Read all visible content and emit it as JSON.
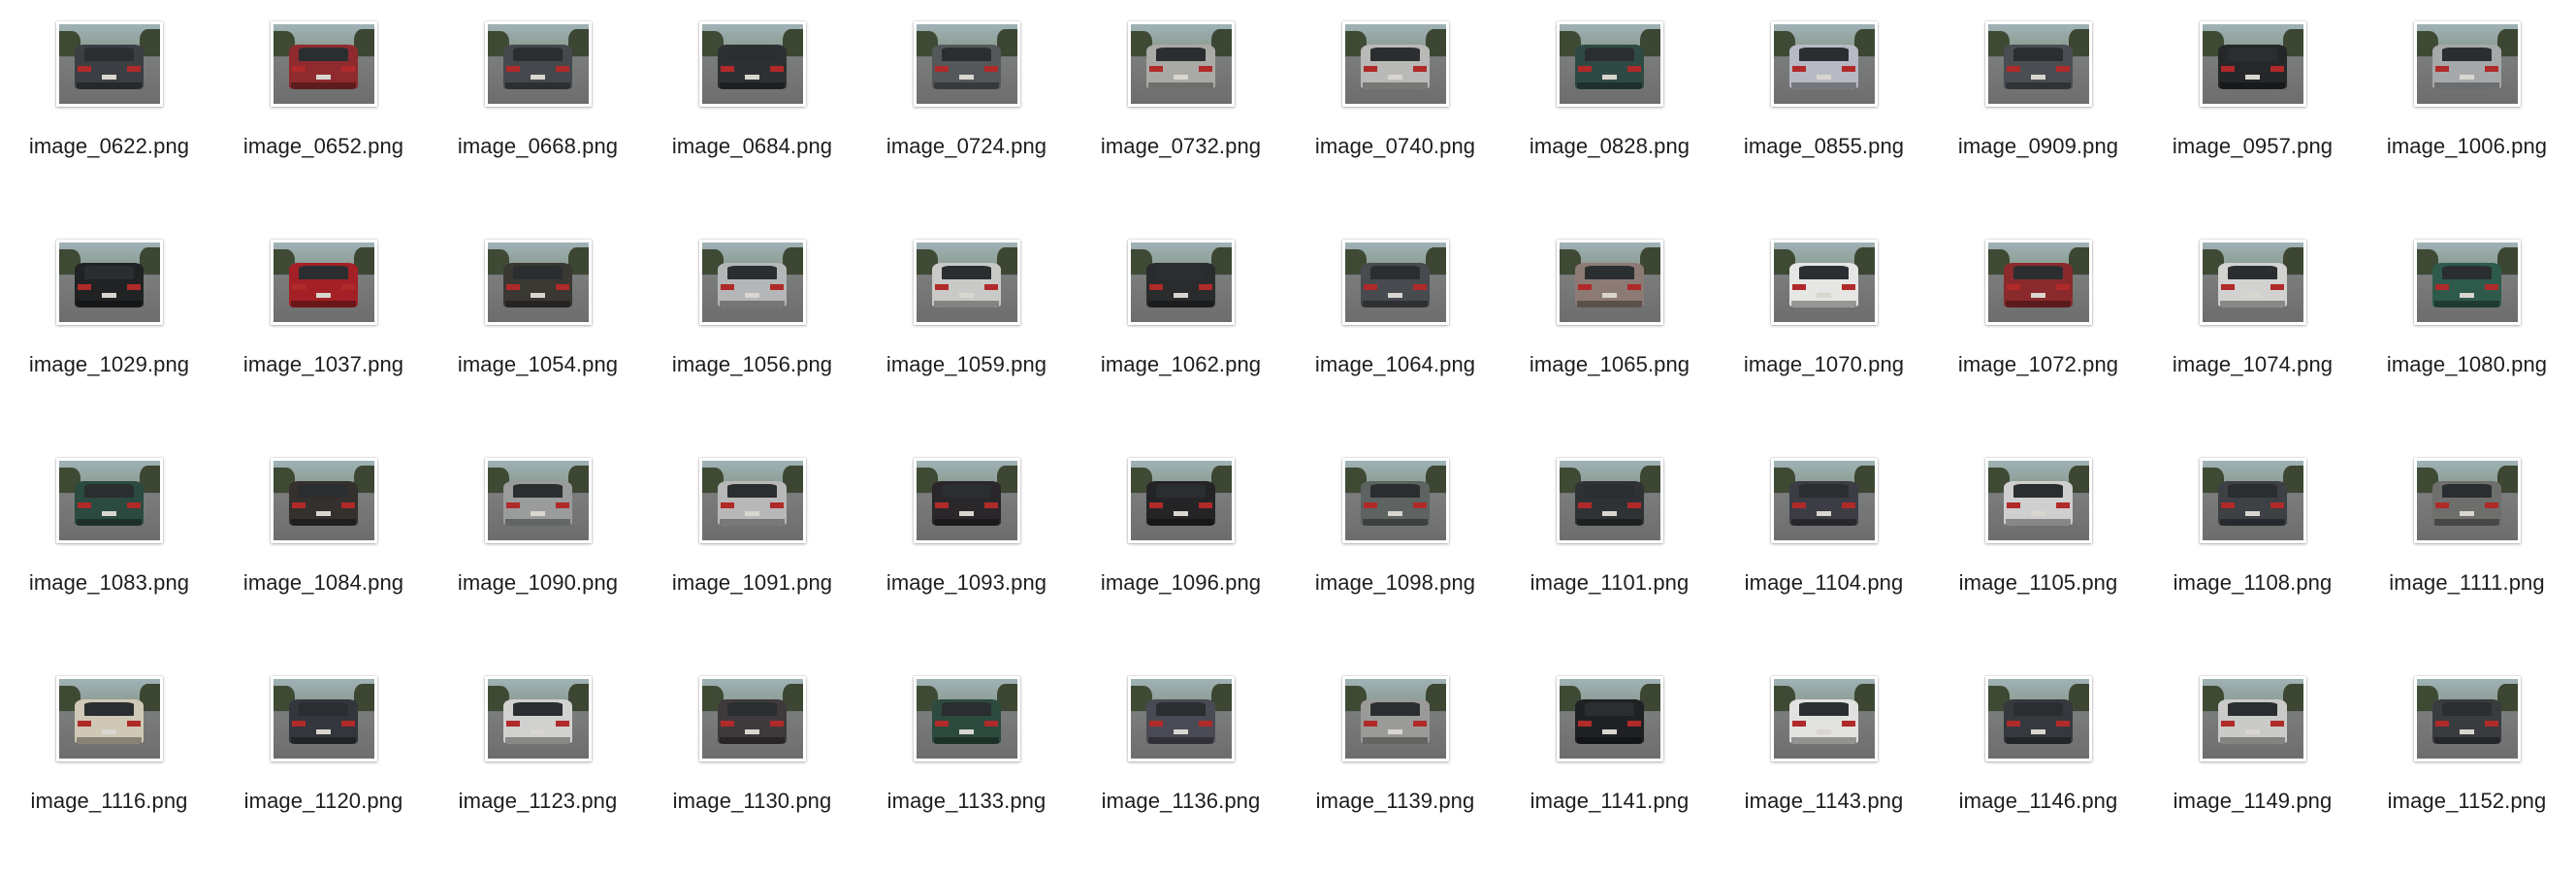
{
  "files": [
    {
      "name": "image_0622.png",
      "car_color": "#3b3f44"
    },
    {
      "name": "image_0652.png",
      "car_color": "#8f2b2f"
    },
    {
      "name": "image_0668.png",
      "car_color": "#45484c"
    },
    {
      "name": "image_0684.png",
      "car_color": "#2e3033"
    },
    {
      "name": "image_0724.png",
      "car_color": "#55585b"
    },
    {
      "name": "image_0732.png",
      "car_color": "#a9a9a6"
    },
    {
      "name": "image_0740.png",
      "car_color": "#b9b9b7"
    },
    {
      "name": "image_0828.png",
      "car_color": "#2f4a44"
    },
    {
      "name": "image_0855.png",
      "car_color": "#b7b9c4"
    },
    {
      "name": "image_0909.png",
      "car_color": "#4a4d52"
    },
    {
      "name": "image_0957.png",
      "car_color": "#252729"
    },
    {
      "name": "image_1006.png",
      "car_color": "#a6a8aa"
    },
    {
      "name": "image_1029.png",
      "car_color": "#202224"
    },
    {
      "name": "image_1037.png",
      "car_color": "#a32126"
    },
    {
      "name": "image_1054.png",
      "car_color": "#3a3832"
    },
    {
      "name": "image_1056.png",
      "car_color": "#b5b6b7"
    },
    {
      "name": "image_1059.png",
      "car_color": "#c9c9c7"
    },
    {
      "name": "image_1062.png",
      "car_color": "#2a2b2d"
    },
    {
      "name": "image_1064.png",
      "car_color": "#474a4f"
    },
    {
      "name": "image_1065.png",
      "car_color": "#8c7b74"
    },
    {
      "name": "image_1070.png",
      "car_color": "#e6e6e4"
    },
    {
      "name": "image_1072.png",
      "car_color": "#8a2a2c"
    },
    {
      "name": "image_1074.png",
      "car_color": "#d2d2d0"
    },
    {
      "name": "image_1080.png",
      "car_color": "#2e5a4c"
    },
    {
      "name": "image_1083.png",
      "car_color": "#2b4a40"
    },
    {
      "name": "image_1084.png",
      "car_color": "#34302d"
    },
    {
      "name": "image_1090.png",
      "car_color": "#9a9b9b"
    },
    {
      "name": "image_1091.png",
      "car_color": "#b8b8b8"
    },
    {
      "name": "image_1093.png",
      "car_color": "#2a272a"
    },
    {
      "name": "image_1096.png",
      "car_color": "#242426"
    },
    {
      "name": "image_1098.png",
      "car_color": "#5d6360"
    },
    {
      "name": "image_1101.png",
      "car_color": "#2f3234"
    },
    {
      "name": "image_1104.png",
      "car_color": "#3c3d44"
    },
    {
      "name": "image_1105.png",
      "car_color": "#cfcfcf"
    },
    {
      "name": "image_1108.png",
      "car_color": "#3d4044"
    },
    {
      "name": "image_1111.png",
      "car_color": "#6e6e6c"
    },
    {
      "name": "image_1116.png",
      "car_color": "#cfc8b6"
    },
    {
      "name": "image_1120.png",
      "car_color": "#33363c"
    },
    {
      "name": "image_1123.png",
      "car_color": "#d1d1cf"
    },
    {
      "name": "image_1130.png",
      "car_color": "#3e3a3c"
    },
    {
      "name": "image_1133.png",
      "car_color": "#2c4a3e"
    },
    {
      "name": "image_1136.png",
      "car_color": "#4a4a55"
    },
    {
      "name": "image_1139.png",
      "car_color": "#9a9b98"
    },
    {
      "name": "image_1141.png",
      "car_color": "#1f2124"
    },
    {
      "name": "image_1143.png",
      "car_color": "#e1e1df"
    },
    {
      "name": "image_1146.png",
      "car_color": "#35383d"
    },
    {
      "name": "image_1149.png",
      "car_color": "#cacac8"
    },
    {
      "name": "image_1152.png",
      "car_color": "#3a3b3f"
    }
  ]
}
